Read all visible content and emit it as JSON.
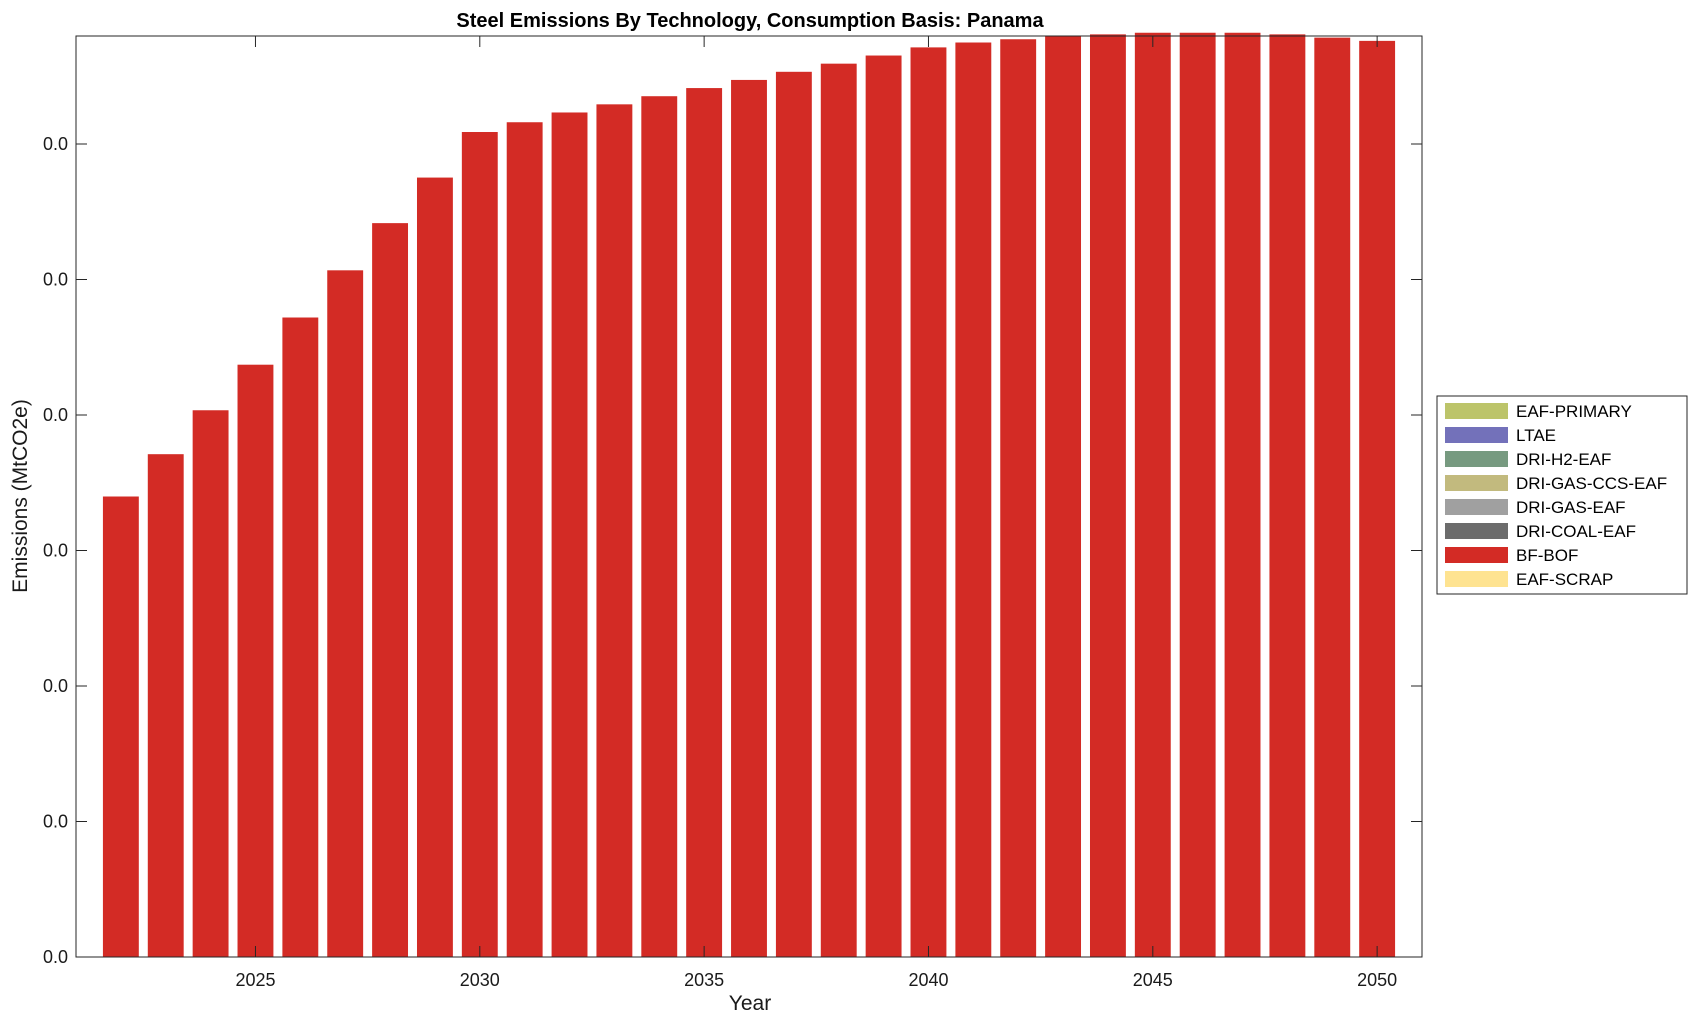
{
  "chart_data": {
    "type": "bar",
    "stacked": true,
    "title": "Steel Emissions By Technology, Consumption Basis: Panama",
    "xlabel": "Year",
    "ylabel": "Emissions (MtCO2e)",
    "x": [
      2022,
      2023,
      2024,
      2025,
      2026,
      2027,
      2028,
      2029,
      2030,
      2031,
      2032,
      2033,
      2034,
      2035,
      2036,
      2037,
      2038,
      2039,
      2040,
      2041,
      2042,
      2043,
      2044,
      2045,
      2046,
      2047,
      2048,
      2049,
      2050
    ],
    "x_ticks": [
      "2025",
      "2030",
      "2035",
      "2040",
      "2045",
      "2050"
    ],
    "y_ticks": [
      "0.0",
      "0.0",
      "0.0",
      "0.0",
      "0.0",
      "0.0",
      "0.0"
    ],
    "ylim": [
      0,
      5.66
    ],
    "grid": false,
    "legend_position": "right",
    "series": [
      {
        "name": "EAF-PRIMARY",
        "color": "#bcc46a",
        "values": [
          0,
          0,
          0,
          0,
          0,
          0,
          0,
          0,
          0,
          0,
          0,
          0,
          0,
          0,
          0,
          0,
          0,
          0,
          0,
          0,
          0,
          0,
          0,
          0,
          0,
          0,
          0,
          0,
          0
        ]
      },
      {
        "name": "LTAE",
        "color": "#7371ba",
        "values": [
          0,
          0,
          0,
          0,
          0,
          0,
          0,
          0,
          0,
          0,
          0,
          0,
          0,
          0,
          0,
          0,
          0,
          0,
          0,
          0,
          0,
          0,
          0,
          0,
          0,
          0,
          0,
          0,
          0
        ]
      },
      {
        "name": "DRI-H2-EAF",
        "color": "#779a80",
        "values": [
          0,
          0,
          0,
          0,
          0,
          0,
          0,
          0,
          0,
          0,
          0,
          0,
          0,
          0,
          0,
          0,
          0,
          0,
          0,
          0,
          0,
          0,
          0,
          0,
          0,
          0,
          0,
          0,
          0
        ]
      },
      {
        "name": "DRI-GAS-CCS-EAF",
        "color": "#c2ba7e",
        "values": [
          0,
          0,
          0,
          0,
          0,
          0,
          0,
          0,
          0,
          0,
          0,
          0,
          0,
          0,
          0,
          0,
          0,
          0,
          0,
          0,
          0,
          0,
          0,
          0,
          0,
          0,
          0,
          0,
          0
        ]
      },
      {
        "name": "DRI-GAS-EAF",
        "color": "#a0a0a0",
        "values": [
          0,
          0,
          0,
          0,
          0,
          0,
          0,
          0,
          0,
          0,
          0,
          0,
          0,
          0,
          0,
          0,
          0,
          0,
          0,
          0,
          0,
          0,
          0,
          0,
          0,
          0,
          0,
          0,
          0
        ]
      },
      {
        "name": "DRI-COAL-EAF",
        "color": "#6c6c6c",
        "values": [
          0,
          0,
          0,
          0,
          0,
          0,
          0,
          0,
          0,
          0,
          0,
          0,
          0,
          0,
          0,
          0,
          0,
          0,
          0,
          0,
          0,
          0,
          0,
          0,
          0,
          0,
          0,
          0,
          0
        ]
      },
      {
        "name": "BF-BOF",
        "color": "#d32b25",
        "values": [
          2.83,
          3.09,
          3.36,
          3.64,
          3.93,
          4.22,
          4.51,
          4.79,
          5.07,
          5.13,
          5.19,
          5.24,
          5.29,
          5.34,
          5.39,
          5.44,
          5.49,
          5.54,
          5.59,
          5.62,
          5.64,
          5.66,
          5.67,
          5.68,
          5.68,
          5.68,
          5.67,
          5.65,
          5.63
        ]
      },
      {
        "name": "EAF-SCRAP",
        "color": "#fee391",
        "values": [
          0,
          0,
          0,
          0,
          0,
          0,
          0,
          0,
          0,
          0,
          0,
          0,
          0,
          0,
          0,
          0,
          0,
          0,
          0,
          0,
          0,
          0,
          0,
          0,
          0,
          0,
          0,
          0,
          0
        ]
      }
    ]
  }
}
